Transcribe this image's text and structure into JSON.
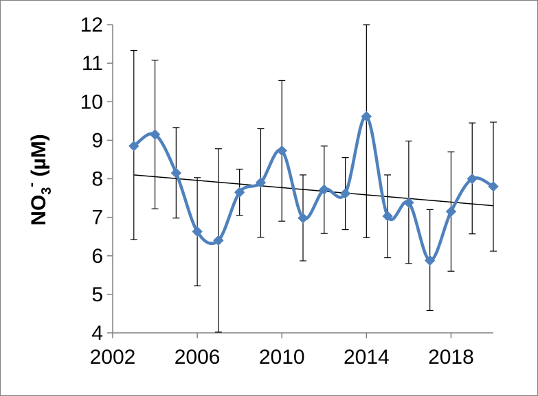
{
  "chart_data": {
    "type": "line",
    "title": "",
    "xlabel": "",
    "ylabel": {
      "base": "NO",
      "sub": "3",
      "sup": "-",
      "rest": " (µM)"
    },
    "xlim": [
      2002,
      2020
    ],
    "ylim": [
      4,
      12
    ],
    "x_ticks": [
      2002,
      2006,
      2010,
      2014,
      2018
    ],
    "y_ticks": [
      4,
      5,
      6,
      7,
      8,
      9,
      10,
      11,
      12
    ],
    "grid": false,
    "legend": "none",
    "series": [
      {
        "x": [
          2003,
          2004,
          2005,
          2006,
          2007,
          2008,
          2009,
          2010,
          2011,
          2012,
          2013,
          2014,
          2015,
          2016,
          2017,
          2018,
          2019,
          2020
        ],
        "y": [
          8.85,
          9.15,
          8.15,
          6.63,
          6.4,
          7.65,
          7.9,
          8.73,
          6.98,
          7.72,
          7.62,
          9.62,
          7.03,
          7.38,
          5.88,
          7.15,
          8.0,
          7.8
        ],
        "err_low": [
          6.42,
          7.22,
          6.98,
          5.22,
          4.02,
          7.05,
          6.48,
          6.9,
          5.87,
          6.58,
          6.68,
          6.47,
          5.95,
          5.8,
          4.58,
          5.6,
          6.57,
          6.12
        ],
        "err_high": [
          11.33,
          11.08,
          9.33,
          8.03,
          8.78,
          8.25,
          9.3,
          10.55,
          8.1,
          8.85,
          8.55,
          12.0,
          8.1,
          8.98,
          7.2,
          8.7,
          9.45,
          9.47
        ],
        "color": "#4F81BD",
        "marker": "diamond"
      }
    ],
    "trendline": {
      "x": [
        2003,
        2020
      ],
      "y": [
        8.1,
        7.3
      ],
      "color": "#000000"
    }
  }
}
